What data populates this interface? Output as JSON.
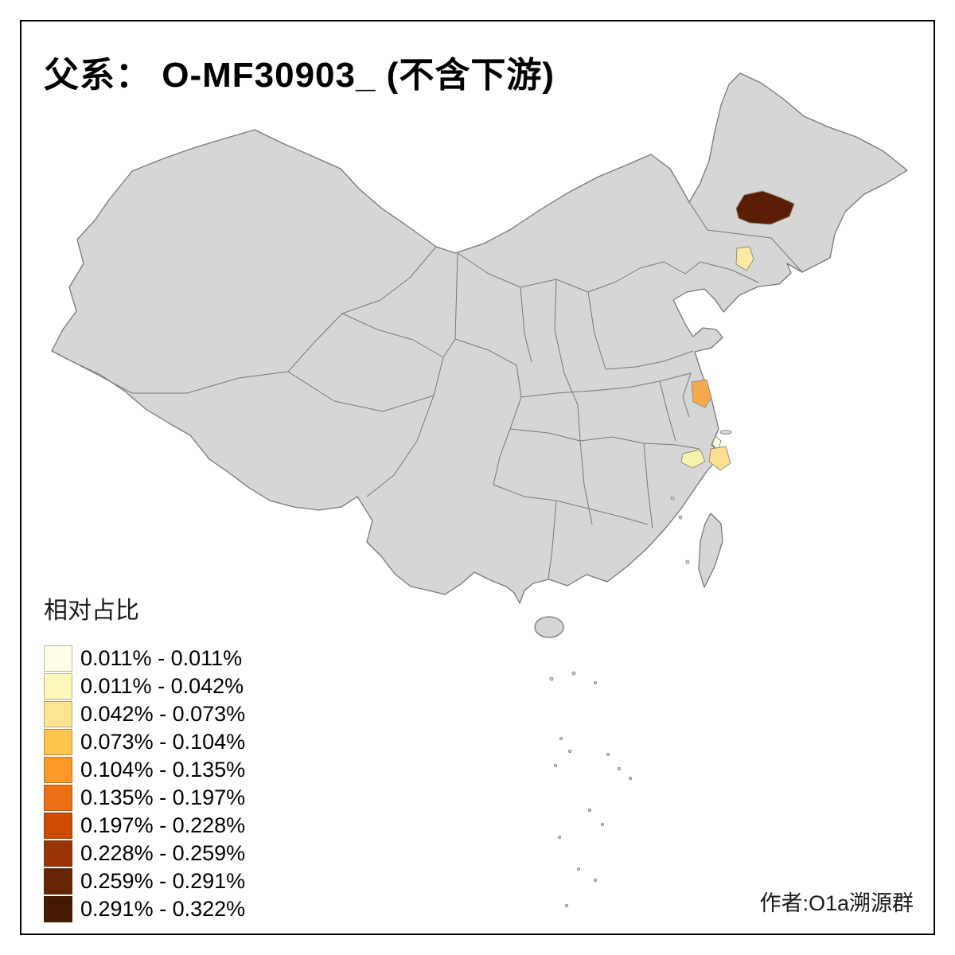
{
  "title": "父系： O-MF30903_ (不含下游)",
  "legend": {
    "title": "相对占比",
    "items": [
      {
        "label": "0.011% - 0.011%",
        "color": "#FFFFE5"
      },
      {
        "label": "0.011% - 0.042%",
        "color": "#FFF7BC"
      },
      {
        "label": "0.042% - 0.073%",
        "color": "#FEE391"
      },
      {
        "label": "0.073% - 0.104%",
        "color": "#FEC44F"
      },
      {
        "label": "0.104% - 0.135%",
        "color": "#FE9929"
      },
      {
        "label": "0.135% - 0.197%",
        "color": "#EC7014"
      },
      {
        "label": "0.197% - 0.228%",
        "color": "#CC4C02"
      },
      {
        "label": "0.228% - 0.259%",
        "color": "#993404"
      },
      {
        "label": "0.259% - 0.291%",
        "color": "#662506"
      },
      {
        "label": "0.291% - 0.322%",
        "color": "#451A03"
      }
    ]
  },
  "credit": "作者:O1a溯源群",
  "map": {
    "base_fill": "#D6D6D6",
    "regions": {
      "northeast_dark": {
        "color": "#5A1E06"
      },
      "liaoning_west_pale": {
        "color": "#FBE9A6"
      },
      "jiangsu_orange": {
        "color": "#F3A94C"
      },
      "shanghai_cream": {
        "color": "#FFFFE5"
      },
      "zhejiang_nw_pale": {
        "color": "#F7F2AE"
      },
      "zhejiang_east_yellow": {
        "color": "#FBDE8F"
      }
    }
  }
}
